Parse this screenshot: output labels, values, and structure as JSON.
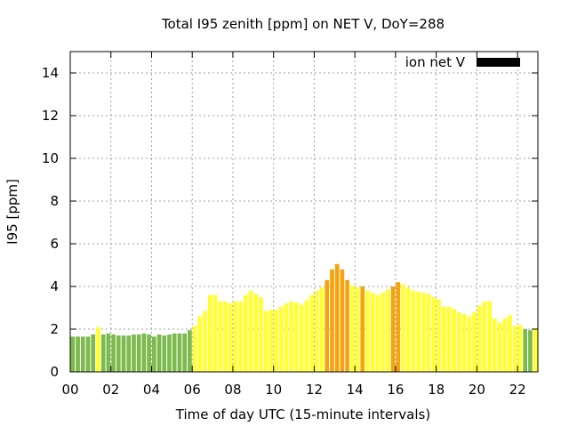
{
  "chart_data": {
    "type": "bar",
    "title": "Total I95 zenith [ppm] on NET V, DoY=288",
    "xlabel": "Time of day UTC (15-minute intervals)",
    "ylabel": "I95 [ppm]",
    "xlim": [
      0,
      23
    ],
    "ylim": [
      0,
      15
    ],
    "grid": true,
    "legend_position": "top-right",
    "legend": [
      {
        "name": "ion net V",
        "color": "#000000"
      }
    ],
    "x_ticks": [
      "00",
      "02",
      "04",
      "06",
      "08",
      "10",
      "12",
      "14",
      "16",
      "18",
      "20",
      "22"
    ],
    "y_ticks": [
      "0",
      "2",
      "4",
      "6",
      "8",
      "10",
      "12",
      "14"
    ],
    "interval_hours": 0.25,
    "values": [
      1.65,
      1.65,
      1.65,
      1.65,
      1.75,
      2.1,
      1.75,
      1.8,
      1.75,
      1.7,
      1.7,
      1.7,
      1.75,
      1.75,
      1.8,
      1.75,
      1.65,
      1.75,
      1.7,
      1.75,
      1.8,
      1.8,
      1.8,
      1.95,
      2.15,
      2.6,
      2.85,
      3.6,
      3.6,
      3.3,
      3.3,
      3.2,
      3.3,
      3.3,
      3.6,
      3.8,
      3.65,
      3.5,
      2.85,
      2.9,
      2.9,
      3.05,
      3.2,
      3.3,
      3.25,
      3.15,
      3.35,
      3.6,
      3.8,
      3.95,
      4.3,
      4.8,
      5.05,
      4.8,
      4.3,
      4.05,
      3.95,
      4.0,
      3.8,
      3.7,
      3.6,
      3.7,
      3.85,
      4.0,
      4.2,
      4.1,
      3.95,
      3.8,
      3.75,
      3.7,
      3.65,
      3.5,
      3.4,
      3.05,
      3.05,
      2.95,
      2.8,
      2.7,
      2.6,
      2.8,
      3.1,
      3.3,
      3.3,
      2.5,
      2.3,
      2.5,
      2.65,
      2.15,
      2.2,
      2.0,
      1.95,
      2.05
    ],
    "level_colors": {
      "low": "#7cba4d",
      "moderate": "#ffff33",
      "elevated": "#f5a410"
    },
    "bar_levels": [
      "low",
      "low",
      "low",
      "low",
      "low",
      "moderate",
      "low",
      "low",
      "low",
      "low",
      "low",
      "low",
      "low",
      "low",
      "low",
      "low",
      "low",
      "low",
      "low",
      "low",
      "low",
      "low",
      "low",
      "low",
      "moderate",
      "moderate",
      "moderate",
      "moderate",
      "moderate",
      "moderate",
      "moderate",
      "moderate",
      "moderate",
      "moderate",
      "moderate",
      "moderate",
      "moderate",
      "moderate",
      "moderate",
      "moderate",
      "moderate",
      "moderate",
      "moderate",
      "moderate",
      "moderate",
      "moderate",
      "moderate",
      "moderate",
      "moderate",
      "moderate",
      "elevated",
      "elevated",
      "elevated",
      "elevated",
      "elevated",
      "moderate",
      "moderate",
      "elevated",
      "moderate",
      "moderate",
      "moderate",
      "moderate",
      "moderate",
      "elevated",
      "elevated",
      "moderate",
      "moderate",
      "moderate",
      "moderate",
      "moderate",
      "moderate",
      "moderate",
      "moderate",
      "moderate",
      "moderate",
      "moderate",
      "moderate",
      "moderate",
      "moderate",
      "moderate",
      "moderate",
      "moderate",
      "moderate",
      "moderate",
      "moderate",
      "moderate",
      "moderate",
      "moderate",
      "moderate",
      "low",
      "low",
      "moderate"
    ]
  }
}
